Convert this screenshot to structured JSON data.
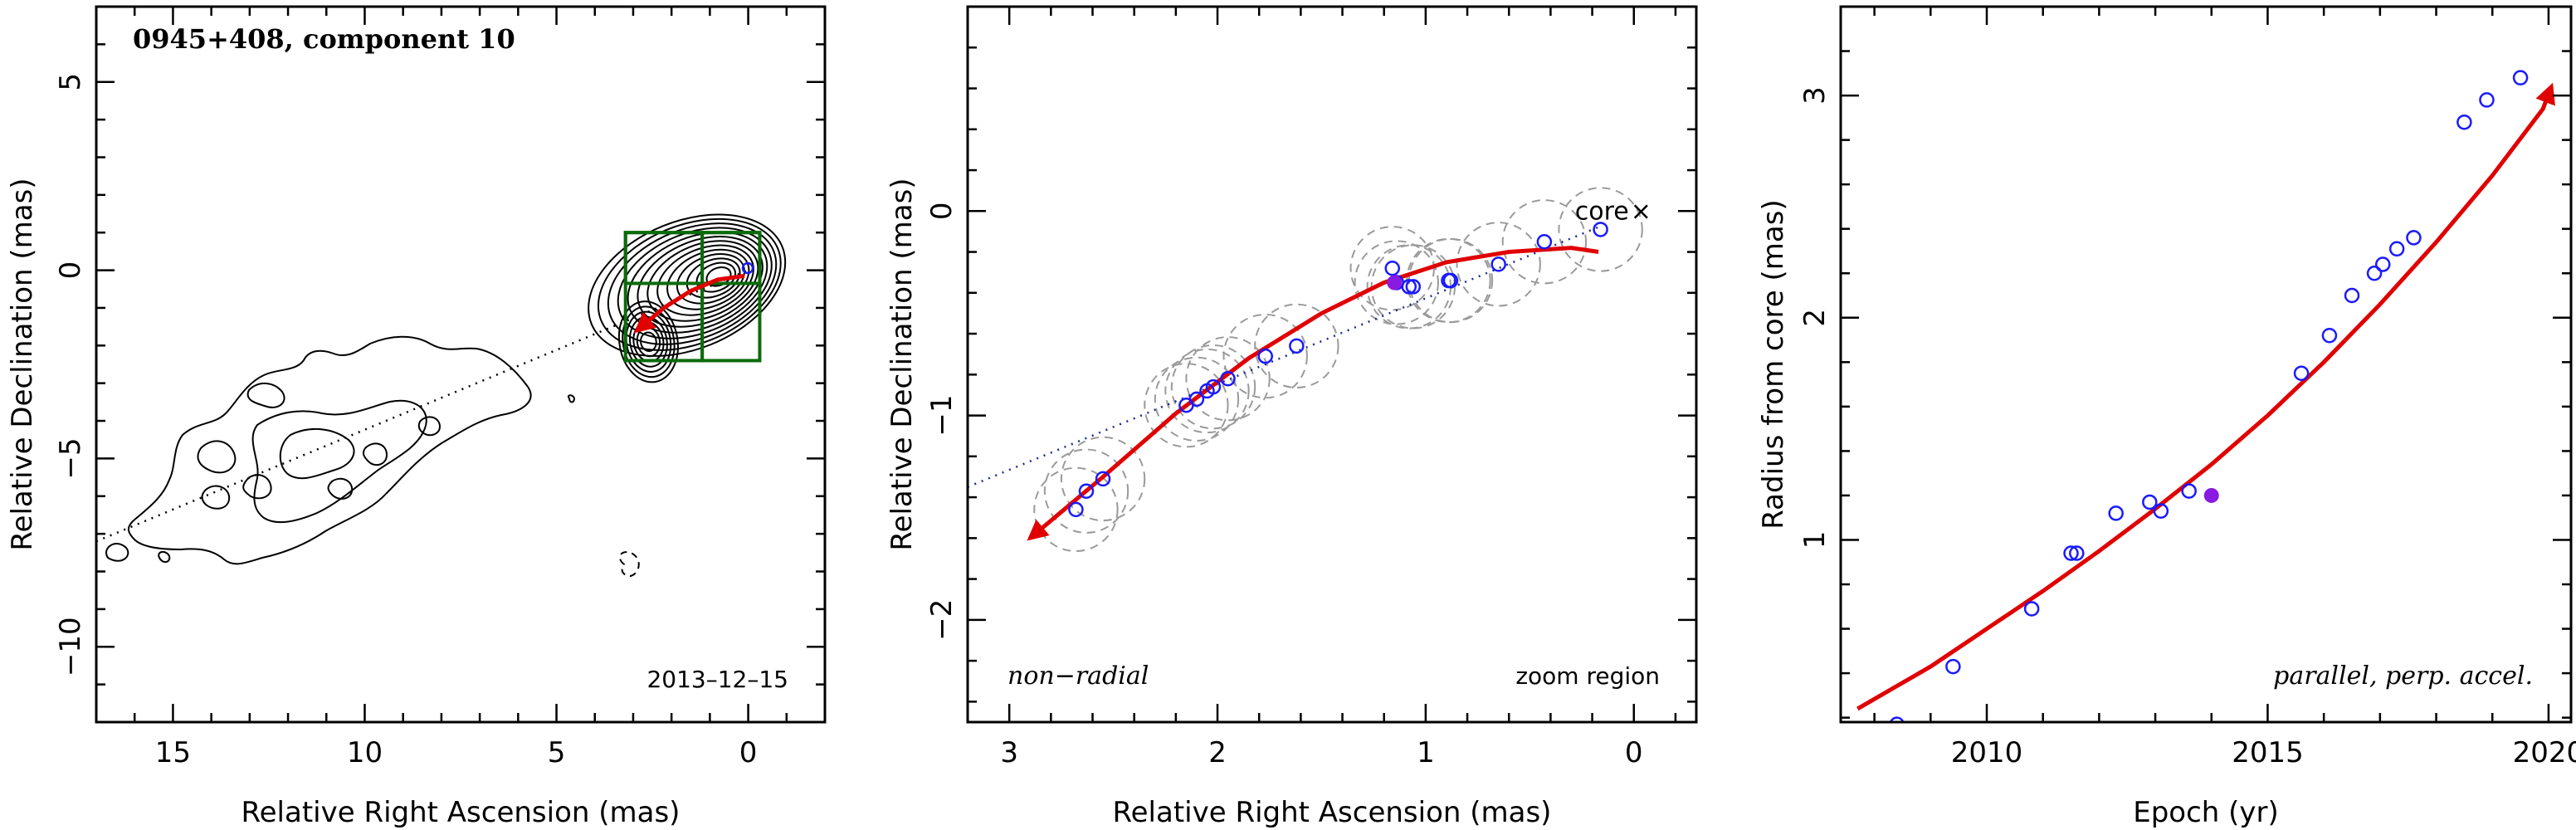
{
  "chart_data": [
    {
      "type": "scatter",
      "panel": "contour map",
      "title": "0945+408, component 10",
      "date_label": "2013–12–15",
      "xlabel": "Relative Right Ascension (mas)",
      "ylabel": "Relative Declination (mas)",
      "xlim": [
        17,
        -2
      ],
      "ylim": [
        -12,
        7
      ],
      "xticks": [
        15,
        10,
        5,
        0
      ],
      "yticks": [
        5,
        0,
        -5,
        -10
      ],
      "xtick_labels": [
        "15",
        "10",
        "5",
        "0"
      ],
      "ytick_labels": [
        "5",
        "0",
        "−5",
        "−10"
      ],
      "trend_line": [
        [
          17,
          -7.2
        ],
        [
          0,
          0
        ]
      ],
      "fit_track": [
        [
          2.9,
          -1.6
        ],
        [
          2.2,
          -1.0
        ],
        [
          1.5,
          -0.55
        ],
        [
          0.8,
          -0.25
        ],
        [
          0.1,
          -0.15
        ]
      ],
      "fit_color": "#e00000",
      "box_color": "#0b6b0b",
      "boxes": [
        [
          3.2,
          1.0,
          1.2,
          -2.4
        ],
        [
          1.2,
          1.0,
          -0.3,
          -2.4
        ],
        [
          3.2,
          1.0,
          -0.3,
          -0.35
        ]
      ]
    },
    {
      "type": "scatter",
      "panel": "zoom",
      "xlabel": "Relative Right Ascension (mas)",
      "ylabel": "Relative Declination (mas)",
      "xlim": [
        3.2,
        -0.3
      ],
      "ylim": [
        -2.5,
        1.0
      ],
      "xticks": [
        3,
        2,
        1,
        0
      ],
      "yticks": [
        0,
        -1,
        -2
      ],
      "xtick_labels": [
        "3",
        "2",
        "1",
        "0"
      ],
      "ytick_labels": [
        "0",
        "−1",
        "−2"
      ],
      "left_annotation": "non−radial",
      "right_annotation": "zoom region",
      "core_label": "core",
      "core_marker": "×",
      "core_position": [
        0.0,
        0.0
      ],
      "trend_line": [
        [
          3.2,
          -1.35
        ],
        [
          0.15,
          -0.07
        ]
      ],
      "points": [
        [
          2.68,
          -1.46
        ],
        [
          2.63,
          -1.37
        ],
        [
          2.55,
          -1.31
        ],
        [
          2.15,
          -0.95
        ],
        [
          2.1,
          -0.92
        ],
        [
          2.05,
          -0.88
        ],
        [
          2.02,
          -0.86
        ],
        [
          1.95,
          -0.82
        ],
        [
          1.77,
          -0.71
        ],
        [
          1.62,
          -0.66
        ],
        [
          1.16,
          -0.28
        ],
        [
          1.14,
          -0.35
        ],
        [
          1.08,
          -0.37
        ],
        [
          1.06,
          -0.37
        ],
        [
          0.89,
          -0.34
        ],
        [
          0.88,
          -0.34
        ],
        [
          0.65,
          -0.26
        ],
        [
          0.43,
          -0.15
        ],
        [
          0.16,
          -0.09
        ]
      ],
      "highlight_point": [
        1.15,
        -0.35
      ],
      "uncertainty_radius": 0.2,
      "fit_track": [
        [
          2.9,
          -1.6
        ],
        [
          2.55,
          -1.3
        ],
        [
          2.2,
          -0.99
        ],
        [
          1.85,
          -0.72
        ],
        [
          1.5,
          -0.5
        ],
        [
          1.2,
          -0.35
        ],
        [
          0.9,
          -0.25
        ],
        [
          0.6,
          -0.2
        ],
        [
          0.3,
          -0.18
        ],
        [
          0.17,
          -0.2
        ]
      ],
      "point_color": "#1a1aff",
      "highlight_color": "#8a1ae0",
      "fit_color": "#e00000"
    },
    {
      "type": "scatter",
      "panel": "radius vs epoch",
      "xlabel": "Epoch (yr)",
      "ylabel": "Radius from core (mas)",
      "right_annotation": "parallel, perp. accel.",
      "xlim": [
        2007.4,
        2020.4
      ],
      "ylim": [
        0.18,
        3.4
      ],
      "xticks": [
        2010,
        2015,
        2020
      ],
      "yticks": [
        1,
        2,
        3
      ],
      "xtick_labels": [
        "2010",
        "2015",
        "2020"
      ],
      "ytick_labels": [
        "1",
        "2",
        "3"
      ],
      "points": [
        [
          2008.4,
          0.17
        ],
        [
          2009.4,
          0.43
        ],
        [
          2010.8,
          0.69
        ],
        [
          2011.5,
          0.94
        ],
        [
          2011.6,
          0.94
        ],
        [
          2012.3,
          1.12
        ],
        [
          2012.9,
          1.17
        ],
        [
          2013.1,
          1.13
        ],
        [
          2013.6,
          1.22
        ],
        [
          2015.6,
          1.75
        ],
        [
          2016.1,
          1.92
        ],
        [
          2016.5,
          2.1
        ],
        [
          2016.9,
          2.2
        ],
        [
          2017.05,
          2.24
        ],
        [
          2017.3,
          2.31
        ],
        [
          2017.6,
          2.36
        ],
        [
          2018.5,
          2.88
        ],
        [
          2018.9,
          2.98
        ],
        [
          2019.5,
          3.08
        ]
      ],
      "highlight_point": [
        2014.0,
        1.2
      ],
      "fit_curve": [
        [
          2007.7,
          0.24
        ],
        [
          2009,
          0.43
        ],
        [
          2010,
          0.6
        ],
        [
          2011,
          0.77
        ],
        [
          2012,
          0.95
        ],
        [
          2013,
          1.14
        ],
        [
          2014,
          1.34
        ],
        [
          2015,
          1.56
        ],
        [
          2016,
          1.8
        ],
        [
          2017,
          2.06
        ],
        [
          2018,
          2.34
        ],
        [
          2019,
          2.64
        ],
        [
          2019.9,
          2.94
        ],
        [
          2020.05,
          3.04
        ]
      ],
      "point_color": "#1a1aff",
      "highlight_color": "#8a1ae0",
      "fit_color": "#e00000"
    }
  ]
}
